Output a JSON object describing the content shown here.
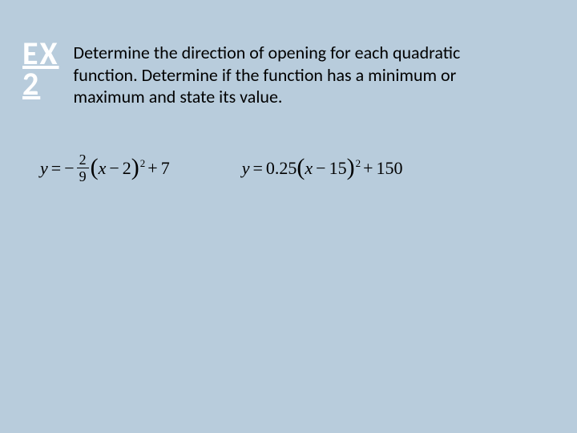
{
  "label": {
    "line1": "EX",
    "line2": "2"
  },
  "prompt": "Determine the direction of opening for each quadratic function. Determine if the function has a minimum or maximum and state its value.",
  "equations": {
    "eq1": {
      "lhs": "y",
      "equals": "=",
      "neg": "−",
      "frac_num": "2",
      "frac_den": "9",
      "lparen": "(",
      "inner_var": "x",
      "inner_op": "−",
      "inner_const": "2",
      "rparen": ")",
      "exp": "2",
      "tail_op": "+",
      "tail_const": "7"
    },
    "eq2": {
      "lhs": "y",
      "equals": "=",
      "coef": "0.25",
      "lparen": "(",
      "inner_var": "x",
      "inner_op": "−",
      "inner_const": "15",
      "rparen": ")",
      "exp": "2",
      "tail_op": "+",
      "tail_const": "150"
    }
  },
  "colors": {
    "background": "#b8ccdc",
    "label_text": "#ffffff",
    "body_text": "#000000"
  }
}
